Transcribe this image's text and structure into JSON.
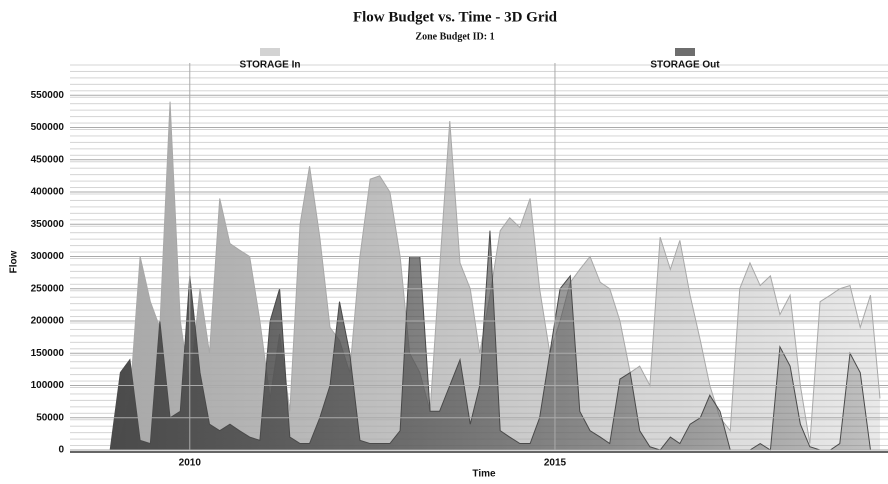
{
  "chart_data": {
    "type": "area",
    "title": "Flow Budget vs. Time - 3D Grid",
    "subtitle": "Zone Budget ID: 1",
    "x_label": "Time",
    "y_label": "Flow",
    "x": [
      2008.91,
      2009.05,
      2009.18,
      2009.32,
      2009.46,
      2009.59,
      2009.73,
      2009.87,
      2010.0,
      2010.14,
      2010.27,
      2010.41,
      2010.55,
      2010.68,
      2010.82,
      2010.96,
      2011.1,
      2011.23,
      2011.37,
      2011.51,
      2011.64,
      2011.78,
      2011.92,
      2012.05,
      2012.19,
      2012.33,
      2012.47,
      2012.6,
      2012.74,
      2012.88,
      2013.01,
      2013.15,
      2013.29,
      2013.42,
      2013.56,
      2013.7,
      2013.84,
      2013.97,
      2014.11,
      2014.25,
      2014.38,
      2014.52,
      2014.66,
      2014.79,
      2014.93,
      2015.07,
      2015.21,
      2015.34,
      2015.48,
      2015.62,
      2015.75,
      2015.89,
      2016.03,
      2016.16,
      2016.3,
      2016.44,
      2016.58,
      2016.71,
      2016.85,
      2016.99,
      2017.12,
      2017.26,
      2017.4,
      2017.53,
      2017.67,
      2017.81,
      2017.95,
      2018.08,
      2018.22,
      2018.36,
      2018.49,
      2018.63,
      2018.77,
      2018.9,
      2019.04,
      2019.18,
      2019.32,
      2019.45
    ],
    "series": [
      {
        "name": "STORAGE In",
        "color": "#a8a8a8",
        "values": [
          0,
          20000,
          80000,
          300000,
          230000,
          190000,
          540000,
          200000,
          100000,
          250000,
          150000,
          390000,
          320000,
          310000,
          300000,
          200000,
          80000,
          180000,
          60000,
          350000,
          440000,
          330000,
          190000,
          170000,
          120000,
          300000,
          420000,
          425000,
          400000,
          300000,
          150000,
          120000,
          60000,
          280000,
          510000,
          290000,
          250000,
          150000,
          240000,
          340000,
          360000,
          345000,
          390000,
          250000,
          150000,
          200000,
          260000,
          280000,
          300000,
          260000,
          250000,
          200000,
          120000,
          130000,
          100000,
          330000,
          280000,
          325000,
          240000,
          170000,
          100000,
          50000,
          30000,
          250000,
          290000,
          255000,
          270000,
          210000,
          240000,
          100000,
          10000,
          230000,
          240000,
          250000,
          255000,
          190000,
          240000,
          80000
        ]
      },
      {
        "name": "STORAGE Out",
        "color": "#4a4a4a",
        "values": [
          0,
          120000,
          140000,
          15000,
          10000,
          200000,
          50000,
          60000,
          270000,
          120000,
          40000,
          30000,
          40000,
          30000,
          20000,
          15000,
          200000,
          250000,
          20000,
          10000,
          10000,
          50000,
          100000,
          230000,
          150000,
          15000,
          10000,
          10000,
          10000,
          30000,
          300000,
          300000,
          60000,
          60000,
          100000,
          140000,
          40000,
          100000,
          340000,
          30000,
          20000,
          10000,
          10000,
          50000,
          150000,
          250000,
          270000,
          60000,
          30000,
          20000,
          10000,
          110000,
          120000,
          30000,
          5000,
          0,
          20000,
          10000,
          40000,
          50000,
          85000,
          60000,
          0,
          0,
          0,
          10000,
          0,
          160000,
          130000,
          40000,
          5000,
          0,
          0,
          10000,
          150000,
          120000,
          0,
          0
        ]
      }
    ],
    "xlim": [
      2008.36,
      2019.56
    ],
    "xticks": [
      2010,
      2015
    ],
    "ylim": [
      0,
      600000
    ],
    "yticks": [
      0,
      50000,
      100000,
      150000,
      200000,
      250000,
      300000,
      350000,
      400000,
      450000,
      500000,
      550000
    ],
    "grid": true
  }
}
